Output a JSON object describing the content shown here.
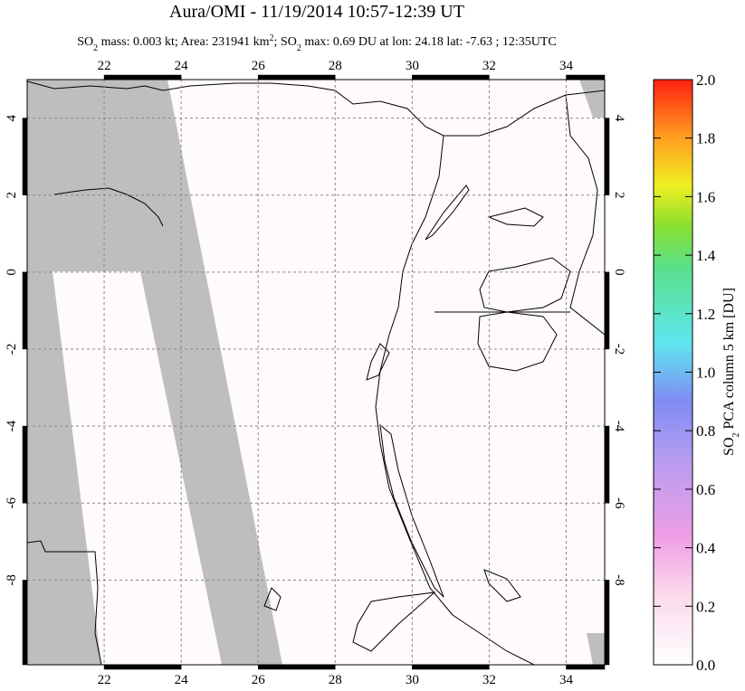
{
  "chart_data": {
    "type": "map",
    "title": "Aura/OMI - 11/19/2014 10:57-12:39 UT",
    "subtitle": [
      "SO",
      "2",
      " mass: 0.003 kt; Area: 231941 km",
      "2",
      "; SO",
      "2",
      " max: 0.69 DU at lon: 24.18 lat: -7.63 ; 12:35UTC"
    ],
    "xlim": [
      20,
      35
    ],
    "xticks": [
      22,
      24,
      26,
      28,
      30,
      32,
      34
    ],
    "ylim": [
      -10.2,
      5
    ],
    "yticks": [
      4,
      2,
      0,
      -2,
      -4,
      -6,
      -8
    ],
    "grid": true,
    "colorbar": {
      "label": [
        "SO",
        "2",
        " PCA column 5 km [DU]"
      ],
      "lim": [
        0,
        2
      ],
      "ticks": [
        {
          "value": 0,
          "label": "0.0"
        },
        0.2,
        0.4,
        0.6,
        0.8,
        {
          "value": 1,
          "label": "1.0"
        },
        1.2,
        1.4,
        1.6,
        1.8,
        {
          "value": 2,
          "label": "2.0"
        }
      ]
    }
  }
}
